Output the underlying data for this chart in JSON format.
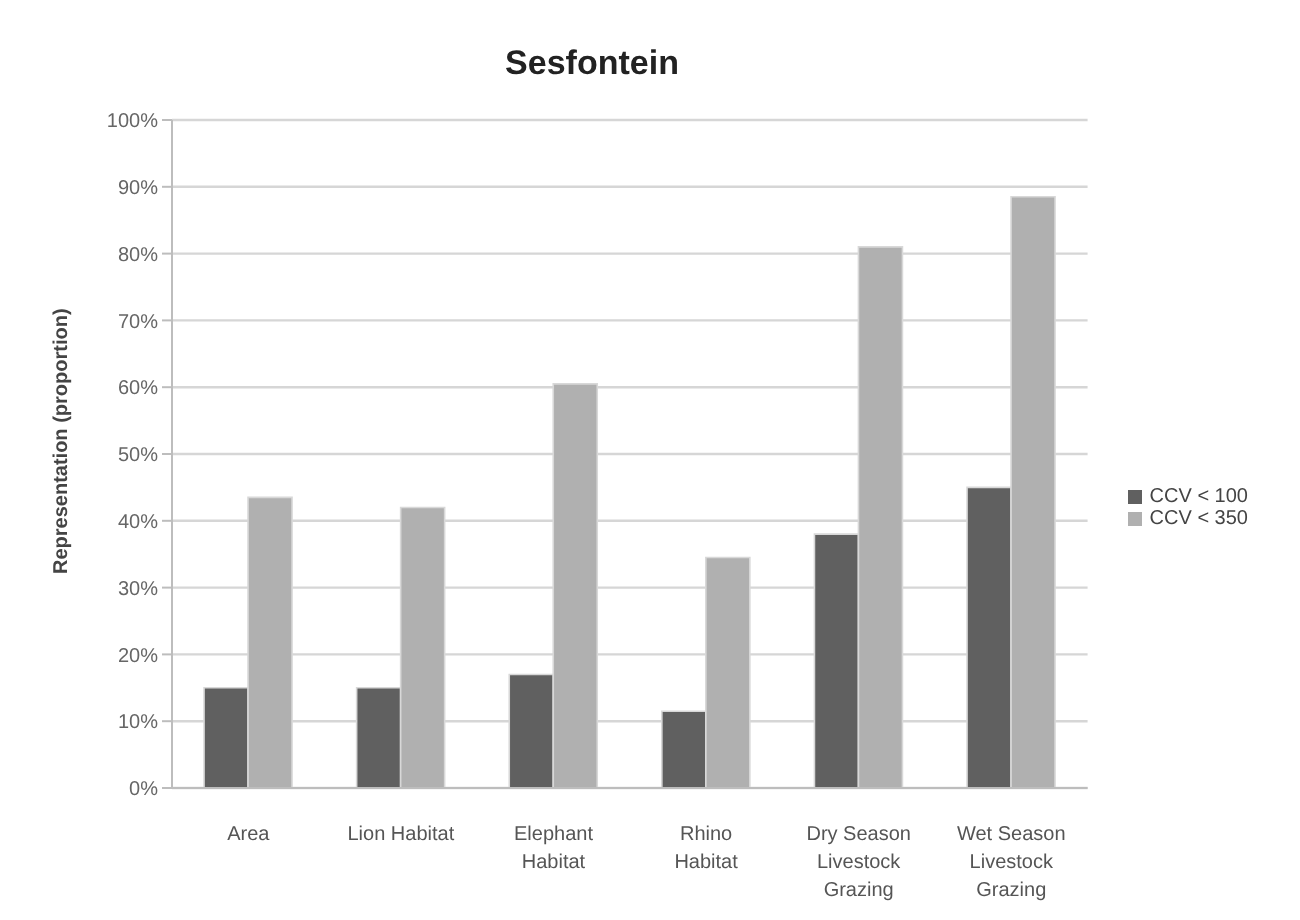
{
  "chart_data": {
    "type": "bar",
    "title": "Sesfontein",
    "ylabel": "Representation (proportion)",
    "categories": [
      "Area",
      "Lion Habitat",
      "Elephant Habitat",
      "Rhino Habitat",
      "Dry Season Livestock Grazing",
      "Wet Season Livestock Grazing"
    ],
    "series": [
      {
        "name": "CCV < 100",
        "color": "#606060",
        "values": [
          15,
          15,
          17,
          11.5,
          38,
          45
        ]
      },
      {
        "name": "CCV < 350",
        "color": "#b0b0b0",
        "values": [
          43.5,
          42,
          60.5,
          34.5,
          81,
          88.5
        ]
      }
    ],
    "ylim": [
      0,
      100
    ],
    "yticks": [
      {
        "value": 0,
        "label": "0%"
      },
      {
        "value": 10,
        "label": "10%"
      },
      {
        "value": 20,
        "label": "20%"
      },
      {
        "value": 30,
        "label": "30%"
      },
      {
        "value": 40,
        "label": "40%"
      },
      {
        "value": 50,
        "label": "50%"
      },
      {
        "value": 60,
        "label": "60%"
      },
      {
        "value": 70,
        "label": "70%"
      },
      {
        "value": 80,
        "label": "80%"
      },
      {
        "value": 90,
        "label": "90%"
      },
      {
        "value": 100,
        "label": "100%"
      }
    ],
    "grid": "y",
    "legend": "right"
  }
}
